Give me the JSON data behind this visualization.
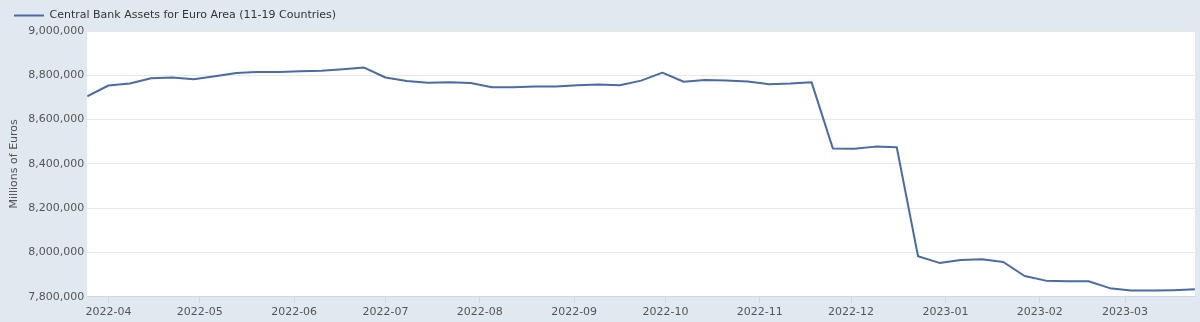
{
  "chart_data": {
    "type": "line",
    "ylabel": "Millions of Euros",
    "legend": "top left",
    "grid": "y",
    "marker": "none",
    "line_style": "solid",
    "x": [
      "2022-03-25",
      "2022-04-01",
      "2022-04-08",
      "2022-04-15",
      "2022-04-22",
      "2022-04-29",
      "2022-05-06",
      "2022-05-13",
      "2022-05-20",
      "2022-05-27",
      "2022-06-03",
      "2022-06-10",
      "2022-06-17",
      "2022-06-24",
      "2022-07-01",
      "2022-07-08",
      "2022-07-15",
      "2022-07-22",
      "2022-07-29",
      "2022-08-05",
      "2022-08-12",
      "2022-08-19",
      "2022-08-26",
      "2022-09-02",
      "2022-09-09",
      "2022-09-16",
      "2022-09-23",
      "2022-09-30",
      "2022-10-07",
      "2022-10-14",
      "2022-10-21",
      "2022-10-28",
      "2022-11-04",
      "2022-11-11",
      "2022-11-18",
      "2022-11-25",
      "2022-12-02",
      "2022-12-09",
      "2022-12-16",
      "2022-12-23",
      "2022-12-30",
      "2023-01-06",
      "2023-01-13",
      "2023-01-20",
      "2023-01-27",
      "2023-02-03",
      "2023-02-10",
      "2023-02-17",
      "2023-02-24",
      "2023-03-03",
      "2023-03-10",
      "2023-03-17",
      "2023-03-24"
    ],
    "series": [
      {
        "name": "Central Bank Assets for Euro Area (11-19 Countries)",
        "color": "#4a6aa8",
        "values": [
          8705000,
          8754000,
          8763000,
          8787000,
          8790000,
          8782000,
          8796000,
          8810000,
          8815000,
          8815000,
          8818000,
          8821000,
          8827000,
          8835000,
          8790000,
          8774000,
          8766000,
          8769000,
          8765000,
          8746000,
          8746000,
          8749000,
          8749000,
          8755000,
          8758000,
          8755000,
          8776000,
          8812000,
          8771000,
          8779000,
          8776000,
          8772000,
          8760000,
          8763000,
          8769000,
          8470000,
          8468000,
          8478000,
          8475000,
          7983000,
          7953000,
          7966000,
          7969000,
          7957000,
          7894000,
          7873000,
          7870000,
          7870000,
          7839000,
          7828000,
          7828000,
          7830000,
          7834000
        ]
      }
    ],
    "xlim": [
      "2022-03-25",
      "2023-03-24"
    ],
    "xticks": [
      "2022-04",
      "2022-05",
      "2022-06",
      "2022-07",
      "2022-08",
      "2022-09",
      "2022-10",
      "2022-11",
      "2022-12",
      "2023-01",
      "2023-02",
      "2023-03"
    ],
    "ylim": [
      7800000,
      9000000
    ],
    "yticks": [
      {
        "value": 7800000,
        "label": "7,800,000"
      },
      {
        "value": 8000000,
        "label": "8,000,000"
      },
      {
        "value": 8200000,
        "label": "8,200,000"
      },
      {
        "value": 8400000,
        "label": "8,400,000"
      },
      {
        "value": 8600000,
        "label": "8,600,000"
      },
      {
        "value": 8800000,
        "label": "8,800,000"
      },
      {
        "value": 9000000,
        "label": "9,000,000"
      }
    ]
  }
}
